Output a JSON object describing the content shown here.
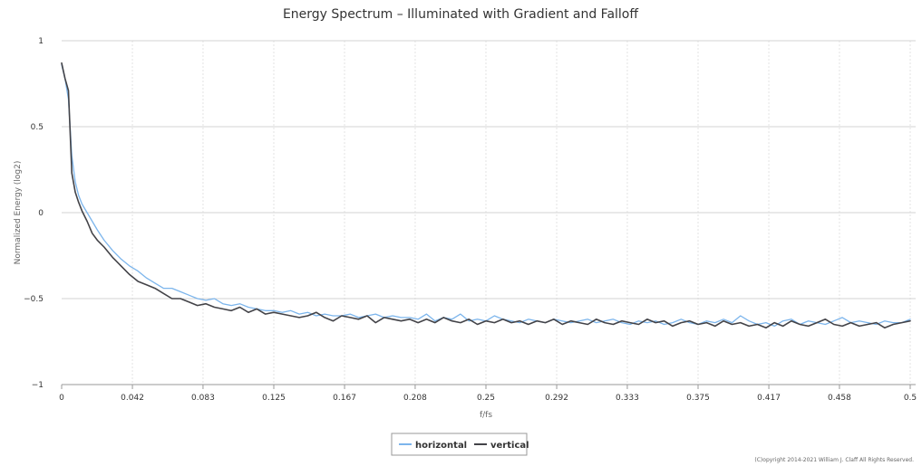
{
  "chart_data": {
    "type": "line",
    "title": "Energy Spectrum – Illuminated with Gradient and Falloff",
    "xlabel": "f/fs",
    "ylabel": "Normalized Energy (log2)",
    "xlim": [
      0,
      0.5
    ],
    "ylim": [
      -1,
      1
    ],
    "x_ticks": [
      {
        "value": 0,
        "label": "0"
      },
      {
        "value": 0.0417,
        "label": "0.042"
      },
      {
        "value": 0.0833,
        "label": "0.083"
      },
      {
        "value": 0.125,
        "label": "0.125"
      },
      {
        "value": 0.1667,
        "label": "0.167"
      },
      {
        "value": 0.2083,
        "label": "0.208"
      },
      {
        "value": 0.25,
        "label": "0.25"
      },
      {
        "value": 0.2917,
        "label": "0.292"
      },
      {
        "value": 0.3333,
        "label": "0.333"
      },
      {
        "value": 0.375,
        "label": "0.375"
      },
      {
        "value": 0.4167,
        "label": "0.417"
      },
      {
        "value": 0.4583,
        "label": "0.458"
      },
      {
        "value": 0.5,
        "label": "0.5"
      }
    ],
    "y_ticks": [
      {
        "value": 1,
        "label": "1"
      },
      {
        "value": 0.5,
        "label": "0.5"
      },
      {
        "value": 0,
        "label": "0"
      },
      {
        "value": -0.5,
        "label": "−0.5"
      },
      {
        "value": -1,
        "label": "−1"
      }
    ],
    "grid": true,
    "legend_position": "bottom-center",
    "series": [
      {
        "name": "horizontal",
        "color": "#7cb5ec",
        "x": [
          0,
          0.002,
          0.004,
          0.006,
          0.008,
          0.01,
          0.012,
          0.015,
          0.018,
          0.021,
          0.025,
          0.03,
          0.035,
          0.04,
          0.045,
          0.05,
          0.055,
          0.06,
          0.065,
          0.07,
          0.075,
          0.08,
          0.085,
          0.09,
          0.095,
          0.1,
          0.105,
          0.11,
          0.115,
          0.12,
          0.125,
          0.13,
          0.135,
          0.14,
          0.145,
          0.15,
          0.155,
          0.16,
          0.165,
          0.17,
          0.175,
          0.18,
          0.185,
          0.19,
          0.195,
          0.2,
          0.205,
          0.21,
          0.215,
          0.22,
          0.225,
          0.23,
          0.235,
          0.24,
          0.245,
          0.25,
          0.255,
          0.26,
          0.265,
          0.27,
          0.275,
          0.28,
          0.285,
          0.29,
          0.295,
          0.3,
          0.305,
          0.31,
          0.315,
          0.32,
          0.325,
          0.33,
          0.335,
          0.34,
          0.345,
          0.35,
          0.355,
          0.36,
          0.365,
          0.37,
          0.375,
          0.38,
          0.385,
          0.39,
          0.395,
          0.4,
          0.405,
          0.41,
          0.415,
          0.42,
          0.425,
          0.43,
          0.435,
          0.44,
          0.445,
          0.45,
          0.455,
          0.46,
          0.465,
          0.47,
          0.475,
          0.48,
          0.485,
          0.49,
          0.495,
          0.5
        ],
        "values": [
          0.86,
          0.78,
          0.66,
          0.33,
          0.18,
          0.1,
          0.05,
          0.0,
          -0.05,
          -0.1,
          -0.16,
          -0.22,
          -0.27,
          -0.31,
          -0.34,
          -0.38,
          -0.41,
          -0.44,
          -0.44,
          -0.46,
          -0.48,
          -0.5,
          -0.51,
          -0.5,
          -0.53,
          -0.54,
          -0.53,
          -0.55,
          -0.56,
          -0.57,
          -0.57,
          -0.58,
          -0.57,
          -0.59,
          -0.58,
          -0.6,
          -0.59,
          -0.6,
          -0.6,
          -0.59,
          -0.61,
          -0.6,
          -0.59,
          -0.61,
          -0.6,
          -0.61,
          -0.61,
          -0.62,
          -0.59,
          -0.63,
          -0.61,
          -0.62,
          -0.59,
          -0.63,
          -0.62,
          -0.63,
          -0.6,
          -0.62,
          -0.63,
          -0.64,
          -0.62,
          -0.63,
          -0.64,
          -0.62,
          -0.63,
          -0.64,
          -0.63,
          -0.62,
          -0.64,
          -0.63,
          -0.62,
          -0.64,
          -0.65,
          -0.63,
          -0.64,
          -0.63,
          -0.65,
          -0.64,
          -0.62,
          -0.64,
          -0.65,
          -0.63,
          -0.64,
          -0.62,
          -0.64,
          -0.6,
          -0.63,
          -0.65,
          -0.64,
          -0.66,
          -0.63,
          -0.62,
          -0.65,
          -0.63,
          -0.64,
          -0.65,
          -0.63,
          -0.61,
          -0.64,
          -0.63,
          -0.64,
          -0.65,
          -0.63,
          -0.64,
          -0.64,
          -0.62
        ]
      },
      {
        "name": "vertical",
        "color": "#434348",
        "x": [
          0,
          0.002,
          0.004,
          0.006,
          0.008,
          0.01,
          0.012,
          0.015,
          0.018,
          0.021,
          0.025,
          0.03,
          0.035,
          0.04,
          0.045,
          0.05,
          0.055,
          0.06,
          0.065,
          0.07,
          0.075,
          0.08,
          0.085,
          0.09,
          0.095,
          0.1,
          0.105,
          0.11,
          0.115,
          0.12,
          0.125,
          0.13,
          0.135,
          0.14,
          0.145,
          0.15,
          0.155,
          0.16,
          0.165,
          0.17,
          0.175,
          0.18,
          0.185,
          0.19,
          0.195,
          0.2,
          0.205,
          0.21,
          0.215,
          0.22,
          0.225,
          0.23,
          0.235,
          0.24,
          0.245,
          0.25,
          0.255,
          0.26,
          0.265,
          0.27,
          0.275,
          0.28,
          0.285,
          0.29,
          0.295,
          0.3,
          0.305,
          0.31,
          0.315,
          0.32,
          0.325,
          0.33,
          0.335,
          0.34,
          0.345,
          0.35,
          0.355,
          0.36,
          0.365,
          0.37,
          0.375,
          0.38,
          0.385,
          0.39,
          0.395,
          0.4,
          0.405,
          0.41,
          0.415,
          0.42,
          0.425,
          0.43,
          0.435,
          0.44,
          0.445,
          0.45,
          0.455,
          0.46,
          0.465,
          0.47,
          0.475,
          0.48,
          0.485,
          0.49,
          0.495,
          0.5
        ],
        "values": [
          0.87,
          0.78,
          0.71,
          0.23,
          0.12,
          0.06,
          0.01,
          -0.05,
          -0.12,
          -0.16,
          -0.2,
          -0.26,
          -0.31,
          -0.36,
          -0.4,
          -0.42,
          -0.44,
          -0.47,
          -0.5,
          -0.5,
          -0.52,
          -0.54,
          -0.53,
          -0.55,
          -0.56,
          -0.57,
          -0.55,
          -0.58,
          -0.56,
          -0.59,
          -0.58,
          -0.59,
          -0.6,
          -0.61,
          -0.6,
          -0.58,
          -0.61,
          -0.63,
          -0.6,
          -0.61,
          -0.62,
          -0.6,
          -0.64,
          -0.61,
          -0.62,
          -0.63,
          -0.62,
          -0.64,
          -0.62,
          -0.64,
          -0.61,
          -0.63,
          -0.64,
          -0.62,
          -0.65,
          -0.63,
          -0.64,
          -0.62,
          -0.64,
          -0.63,
          -0.65,
          -0.63,
          -0.64,
          -0.62,
          -0.65,
          -0.63,
          -0.64,
          -0.65,
          -0.62,
          -0.64,
          -0.65,
          -0.63,
          -0.64,
          -0.65,
          -0.62,
          -0.64,
          -0.63,
          -0.66,
          -0.64,
          -0.63,
          -0.65,
          -0.64,
          -0.66,
          -0.63,
          -0.65,
          -0.64,
          -0.66,
          -0.65,
          -0.67,
          -0.64,
          -0.66,
          -0.63,
          -0.65,
          -0.66,
          -0.64,
          -0.62,
          -0.65,
          -0.66,
          -0.64,
          -0.66,
          -0.65,
          -0.64,
          -0.67,
          -0.65,
          -0.64,
          -0.63
        ]
      }
    ]
  },
  "footer": {
    "copyright": "(C)opyright 2014-2021 William J. Claff All Rights Reserved."
  }
}
